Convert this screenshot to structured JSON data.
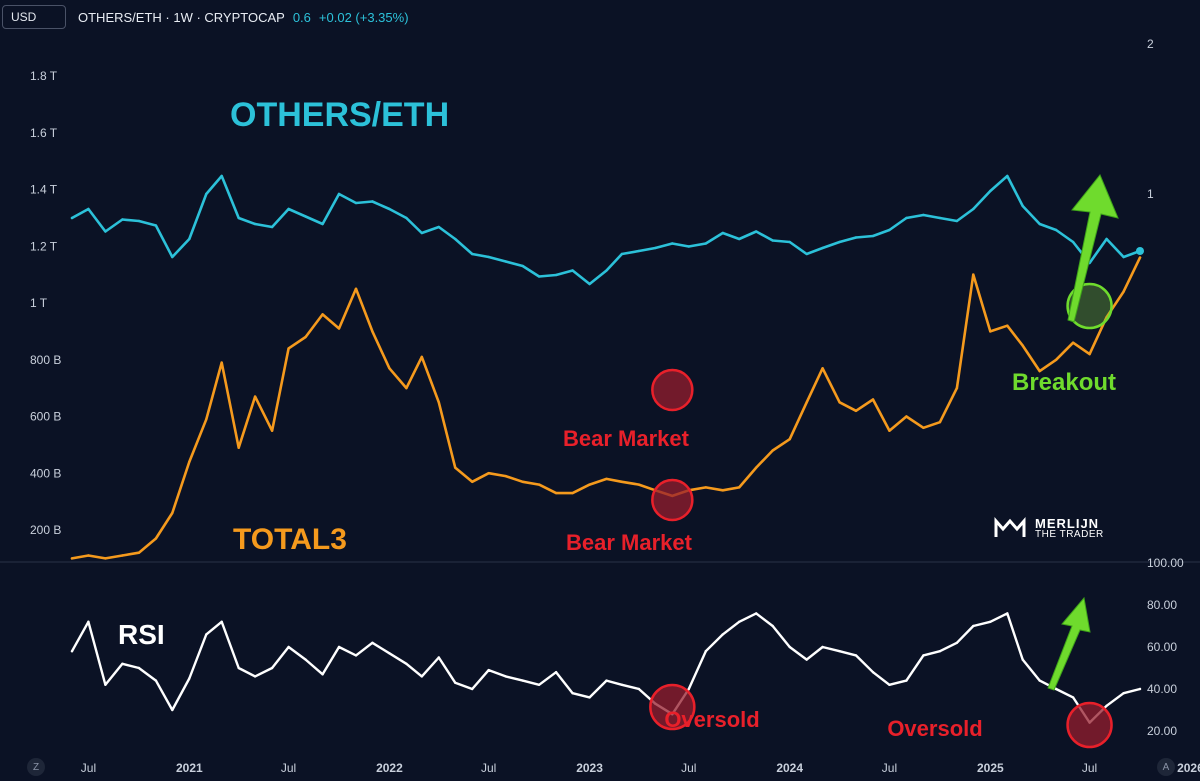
{
  "header": {
    "currency_button": "USD",
    "symbol": "OTHERS/ETH · 1W · CRYPTOCAP",
    "value": "0.6",
    "change": "+0.02 (+3.35%)"
  },
  "corner_buttons": {
    "left": "Z",
    "right": "A"
  },
  "logo": {
    "line1": "MERLIJN",
    "line2": "THE TRADER"
  },
  "colors": {
    "background": "#0b1225",
    "others_eth": "#2cc1d9",
    "total3": "#f59a1d",
    "rsi": "#ffffff",
    "bear_label": "#e8202a",
    "breakout": "#6fdb2d"
  },
  "chart_data": [
    {
      "type": "line",
      "panel": "main",
      "x_tick_labels": [
        "Jul",
        "2021",
        "Jul",
        "2022",
        "Jul",
        "2023",
        "Jul",
        "2024",
        "Jul",
        "2025",
        "Jul",
        "2026"
      ],
      "left_axis_tick_labels": [
        "1.8 T",
        "1.6 T",
        "1.4 T",
        "1.2 T",
        "1 T",
        "800 B",
        "600 B",
        "400 B",
        "200 B"
      ],
      "right_axis_tick_labels": [
        "2",
        "1"
      ],
      "grid": false,
      "annotations": {
        "others_label": "OTHERS/ETH",
        "total3_label": "TOTAL3",
        "bear_market_top": "Bear Market",
        "bear_market_bottom": "Bear Market",
        "breakout": "Breakout"
      },
      "series": [
        {
          "name": "OTHERS/ETH",
          "axis": "right",
          "x": [
            "2020-06",
            "2020-07",
            "2020-08",
            "2020-09",
            "2020-10",
            "2020-11",
            "2020-12",
            "2021-01",
            "2021-02",
            "2021-03",
            "2021-04",
            "2021-05",
            "2021-06",
            "2021-07",
            "2021-08",
            "2021-09",
            "2021-10",
            "2021-11",
            "2021-12",
            "2022-01",
            "2022-02",
            "2022-03",
            "2022-04",
            "2022-05",
            "2022-06",
            "2022-07",
            "2022-08",
            "2022-09",
            "2022-10",
            "2022-11",
            "2022-12",
            "2023-01",
            "2023-02",
            "2023-03",
            "2023-04",
            "2023-05",
            "2023-06",
            "2023-07",
            "2023-08",
            "2023-09",
            "2023-10",
            "2023-11",
            "2023-12",
            "2024-01",
            "2024-02",
            "2024-03",
            "2024-04",
            "2024-05",
            "2024-06",
            "2024-07",
            "2024-08",
            "2024-09",
            "2024-10",
            "2024-11",
            "2024-12",
            "2025-01",
            "2025-02",
            "2025-03",
            "2025-04",
            "2025-05",
            "2025-06",
            "2025-07",
            "2025-08",
            "2025-09",
            "2025-10"
          ],
          "y": [
            0.84,
            0.9,
            0.75,
            0.83,
            0.82,
            0.79,
            0.58,
            0.7,
            1.0,
            1.12,
            0.84,
            0.8,
            0.78,
            0.9,
            0.85,
            0.8,
            1.0,
            0.94,
            0.95,
            0.9,
            0.84,
            0.74,
            0.78,
            0.7,
            0.6,
            0.58,
            0.55,
            0.52,
            0.45,
            0.46,
            0.49,
            0.4,
            0.49,
            0.6,
            0.62,
            0.64,
            0.67,
            0.65,
            0.67,
            0.74,
            0.7,
            0.75,
            0.69,
            0.68,
            0.6,
            0.64,
            0.68,
            0.71,
            0.72,
            0.76,
            0.84,
            0.86,
            0.84,
            0.82,
            0.9,
            1.02,
            1.12,
            0.92,
            0.8,
            0.76,
            0.68,
            0.54,
            0.7,
            0.58,
            0.62
          ]
        },
        {
          "name": "TOTAL3",
          "axis": "left",
          "unit": "USD",
          "x": [
            "2020-06",
            "2020-07",
            "2020-08",
            "2020-09",
            "2020-10",
            "2020-11",
            "2020-12",
            "2021-01",
            "2021-02",
            "2021-03",
            "2021-04",
            "2021-05",
            "2021-06",
            "2021-07",
            "2021-08",
            "2021-09",
            "2021-10",
            "2021-11",
            "2021-12",
            "2022-01",
            "2022-02",
            "2022-03",
            "2022-04",
            "2022-05",
            "2022-06",
            "2022-07",
            "2022-08",
            "2022-09",
            "2022-10",
            "2022-11",
            "2022-12",
            "2023-01",
            "2023-02",
            "2023-03",
            "2023-04",
            "2023-05",
            "2023-06",
            "2023-07",
            "2023-08",
            "2023-09",
            "2023-10",
            "2023-11",
            "2023-12",
            "2024-01",
            "2024-02",
            "2024-03",
            "2024-04",
            "2024-05",
            "2024-06",
            "2024-07",
            "2024-08",
            "2024-09",
            "2024-10",
            "2024-11",
            "2024-12",
            "2025-01",
            "2025-02",
            "2025-03",
            "2025-04",
            "2025-05",
            "2025-06",
            "2025-07",
            "2025-08",
            "2025-09",
            "2025-10"
          ],
          "y": [
            0.1,
            0.11,
            0.1,
            0.11,
            0.12,
            0.17,
            0.26,
            0.44,
            0.59,
            0.79,
            0.49,
            0.67,
            0.55,
            0.84,
            0.88,
            0.96,
            0.91,
            1.05,
            0.9,
            0.77,
            0.7,
            0.81,
            0.65,
            0.42,
            0.37,
            0.4,
            0.39,
            0.37,
            0.36,
            0.33,
            0.33,
            0.36,
            0.38,
            0.37,
            0.36,
            0.34,
            0.32,
            0.34,
            0.35,
            0.34,
            0.35,
            0.42,
            0.48,
            0.52,
            0.65,
            0.77,
            0.65,
            0.62,
            0.66,
            0.55,
            0.6,
            0.56,
            0.58,
            0.7,
            1.1,
            0.9,
            0.92,
            0.85,
            0.76,
            0.8,
            0.86,
            0.82,
            0.95,
            1.04,
            1.16
          ]
        }
      ]
    },
    {
      "type": "line",
      "panel": "rsi",
      "right_axis_tick_labels": [
        "100.00",
        "80.00",
        "60.00",
        "40.00",
        "20.00"
      ],
      "ylim": [
        20,
        100
      ],
      "annotations": {
        "rsi_label": "RSI",
        "oversold_1": "Oversold",
        "oversold_2": "Oversold"
      },
      "series": [
        {
          "name": "RSI",
          "x": [
            "2020-06",
            "2020-07",
            "2020-08",
            "2020-09",
            "2020-10",
            "2020-11",
            "2020-12",
            "2021-01",
            "2021-02",
            "2021-03",
            "2021-04",
            "2021-05",
            "2021-06",
            "2021-07",
            "2021-08",
            "2021-09",
            "2021-10",
            "2021-11",
            "2021-12",
            "2022-01",
            "2022-02",
            "2022-03",
            "2022-04",
            "2022-05",
            "2022-06",
            "2022-07",
            "2022-08",
            "2022-09",
            "2022-10",
            "2022-11",
            "2022-12",
            "2023-01",
            "2023-02",
            "2023-03",
            "2023-04",
            "2023-05",
            "2023-06",
            "2023-07",
            "2023-08",
            "2023-09",
            "2023-10",
            "2023-11",
            "2023-12",
            "2024-01",
            "2024-02",
            "2024-03",
            "2024-04",
            "2024-05",
            "2024-06",
            "2024-07",
            "2024-08",
            "2024-09",
            "2024-10",
            "2024-11",
            "2024-12",
            "2025-01",
            "2025-02",
            "2025-03",
            "2025-04",
            "2025-05",
            "2025-06",
            "2025-07",
            "2025-08",
            "2025-09",
            "2025-10"
          ],
          "y": [
            58,
            72,
            42,
            52,
            50,
            44,
            30,
            45,
            66,
            72,
            50,
            46,
            50,
            60,
            54,
            47,
            60,
            56,
            62,
            57,
            52,
            46,
            55,
            43,
            40,
            49,
            46,
            44,
            42,
            48,
            38,
            36,
            44,
            42,
            40,
            33,
            28,
            40,
            58,
            66,
            72,
            76,
            70,
            60,
            54,
            60,
            58,
            56,
            48,
            42,
            44,
            56,
            58,
            62,
            70,
            72,
            76,
            54,
            44,
            40,
            36,
            24,
            32,
            38,
            40
          ]
        }
      ]
    }
  ]
}
